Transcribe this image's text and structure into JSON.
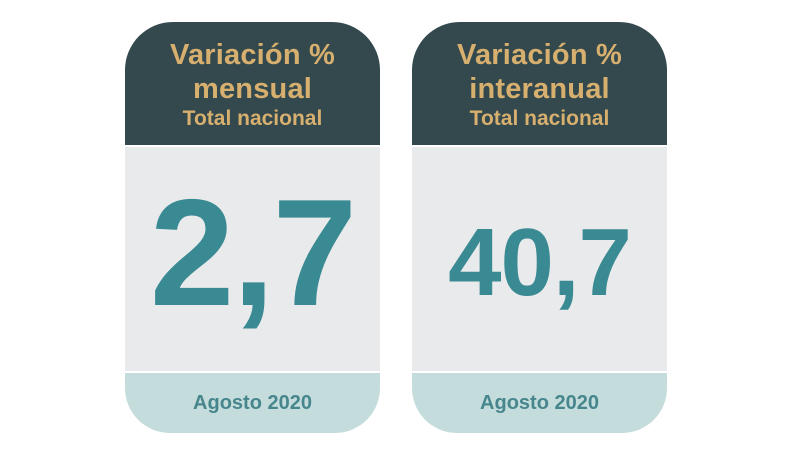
{
  "chart_data": {
    "type": "table",
    "title": "Total nacional",
    "period": "Agosto 2020",
    "series": [
      {
        "name": "Variación % mensual",
        "value": 2.7
      },
      {
        "name": "Variación % interanual",
        "value": 40.7
      }
    ],
    "value_format": "comma-decimal"
  },
  "cards": [
    {
      "title_line1": "Variación %",
      "title_line2": "mensual",
      "subtitle": "Total nacional",
      "value": "2,7",
      "period": "Agosto 2020"
    },
    {
      "title_line1": "Variación %",
      "title_line2": "interanual",
      "subtitle": "Total nacional",
      "value": "40,7",
      "period": "Agosto 2020"
    }
  ],
  "colors": {
    "page_background": "#ffffff",
    "header_background": "#34494d",
    "header_text_gold": "#d7af6e",
    "body_background": "#e9eaeb",
    "value_teal": "#3a8a93",
    "footer_background": "#c4dddc",
    "period_text": "#47868d"
  }
}
